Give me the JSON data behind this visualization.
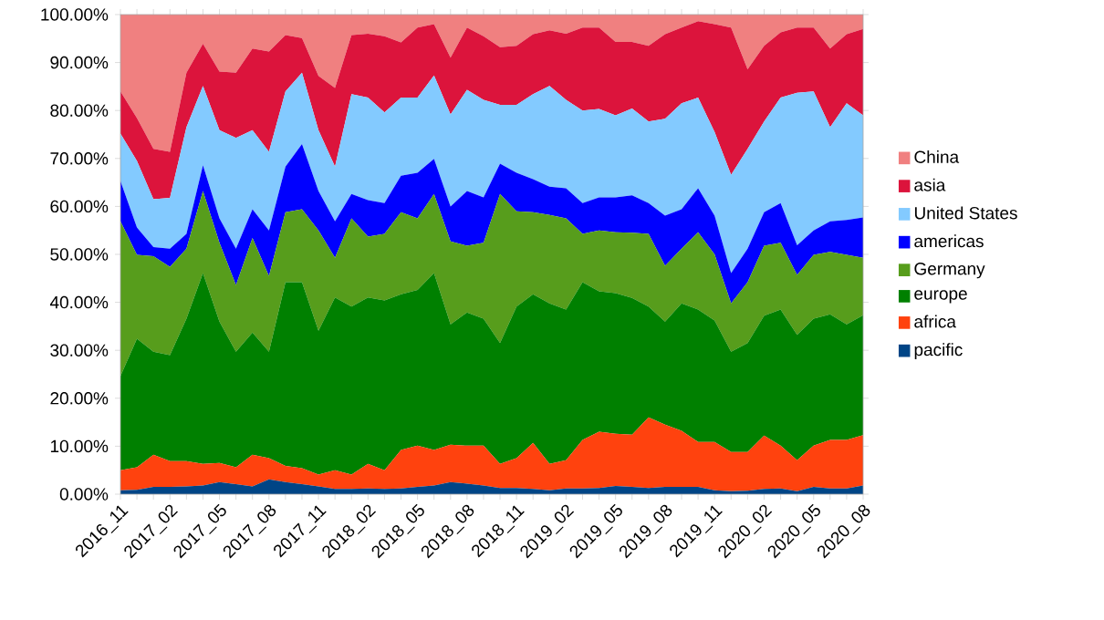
{
  "chart_data": {
    "type": "area",
    "stacked": true,
    "legend": "right",
    "categories": [
      "2016_11",
      null,
      null,
      "2017_02",
      null,
      null,
      "2017_05",
      null,
      null,
      "2017_08",
      null,
      null,
      "2017_11",
      null,
      null,
      "2018_02",
      null,
      null,
      "2018_05",
      null,
      null,
      "2018_08",
      null,
      null,
      "2018_11",
      null,
      null,
      "2019_02",
      null,
      null,
      "2019_05",
      null,
      null,
      "2019_08",
      null,
      null,
      "2019_11",
      null,
      null,
      "2020_02",
      null,
      null,
      "2020_05",
      null,
      null,
      "2020_08"
    ],
    "ylim": [
      0,
      100
    ],
    "yticks": [
      {
        "value": 0,
        "label": "0.00%"
      },
      {
        "value": 10,
        "label": "10.00%"
      },
      {
        "value": 20,
        "label": "20.00%"
      },
      {
        "value": 30,
        "label": "30.00%"
      },
      {
        "value": 40,
        "label": "40.00%"
      },
      {
        "value": 50,
        "label": "50.00%"
      },
      {
        "value": 60,
        "label": "60.00%"
      },
      {
        "value": 70,
        "label": "70.00%"
      },
      {
        "value": 80,
        "label": "80.00%"
      },
      {
        "value": 90,
        "label": "90.00%"
      },
      {
        "value": 100,
        "label": "100.00%"
      }
    ],
    "series": [
      {
        "name": "pacific",
        "color": "#004586",
        "values": [
          0.8,
          0.9,
          1.5,
          1.5,
          1.6,
          1.8,
          2.5,
          2.1,
          1.6,
          3.1,
          2.5,
          2.1,
          1.6,
          1.1,
          1.1,
          1.2,
          1.1,
          1.2,
          1.5,
          1.8,
          2.5,
          2.2,
          1.8,
          1.3,
          1.3,
          1.1,
          0.8,
          1.2,
          1.2,
          1.3,
          1.7,
          1.5,
          1.3,
          1.5,
          1.5,
          1.5,
          0.8,
          0.6,
          0.7,
          1.1,
          1.2,
          0.6,
          1.5,
          1.2,
          1.2,
          1.8
        ]
      },
      {
        "name": "africa",
        "color": "#ff420e",
        "values": [
          4.2,
          4.7,
          6.7,
          5.4,
          5.3,
          4.5,
          4.0,
          3.5,
          6.6,
          4.4,
          3.4,
          3.3,
          2.5,
          3.9,
          3.0,
          5.1,
          3.9,
          8.0,
          8.6,
          7.4,
          7.8,
          7.9,
          8.3,
          5.0,
          6.2,
          9.6,
          5.5,
          5.9,
          10.1,
          11.7,
          10.9,
          10.9,
          14.7,
          13.0,
          11.7,
          9.4,
          10.1,
          8.2,
          8.1,
          11.1,
          8.9,
          6.5,
          8.6,
          10.1,
          10.1,
          10.5
        ]
      },
      {
        "name": "europe",
        "color": "#008000",
        "values": [
          19.6,
          26.8,
          21.5,
          22.1,
          29.7,
          39.8,
          29.5,
          24.1,
          25.5,
          22.2,
          38.3,
          38.8,
          30.0,
          36.0,
          35.0,
          34.7,
          35.4,
          32.5,
          32.5,
          36.9,
          25.1,
          27.8,
          26.5,
          25.2,
          31.6,
          31.0,
          33.5,
          31.4,
          32.9,
          29.3,
          29.3,
          28.5,
          23.1,
          21.5,
          26.6,
          27.6,
          25.3,
          20.9,
          22.7,
          25.0,
          28.4,
          26.1,
          26.5,
          26.2,
          24.1,
          25.0
        ]
      },
      {
        "name": "Germany",
        "color": "#579d1c",
        "values": [
          32.3,
          17.5,
          19.9,
          18.4,
          14.6,
          17.1,
          16.4,
          13.9,
          19.7,
          15.8,
          14.6,
          15.2,
          20.9,
          8.3,
          18.4,
          12.7,
          13.9,
          17.1,
          14.9,
          16.5,
          17.3,
          13.9,
          15.8,
          31.1,
          19.9,
          17.1,
          18.4,
          19.0,
          10.1,
          12.7,
          12.7,
          13.6,
          15.2,
          11.6,
          11.4,
          16.1,
          13.8,
          10.1,
          12.7,
          14.6,
          13.9,
          12.5,
          13.3,
          13.0,
          14.5,
          12.0
        ]
      },
      {
        "name": "americas",
        "color": "#0000ff",
        "values": [
          8.4,
          5.7,
          1.9,
          3.8,
          3.1,
          5.4,
          5.1,
          7.6,
          6.0,
          9.5,
          9.5,
          13.6,
          8.2,
          7.6,
          5.1,
          7.6,
          6.4,
          7.6,
          9.5,
          7.3,
          7.3,
          11.4,
          9.5,
          6.3,
          8.0,
          6.9,
          5.9,
          6.3,
          6.4,
          6.9,
          7.3,
          7.8,
          6.4,
          10.5,
          8.2,
          9.2,
          8.1,
          6.3,
          7.0,
          7.0,
          8.3,
          6.2,
          5.1,
          6.4,
          7.3,
          8.4
        ]
      },
      {
        "name": "United States",
        "color": "#83caff",
        "values": [
          9.9,
          13.9,
          10.0,
          10.6,
          22.2,
          16.5,
          18.4,
          23.1,
          16.5,
          16.4,
          15.7,
          14.9,
          12.7,
          11.4,
          20.8,
          21.4,
          18.9,
          16.3,
          15.7,
          17.4,
          19.2,
          21.1,
          20.3,
          12.3,
          14.2,
          17.7,
          21.0,
          18.4,
          19.3,
          18.4,
          17.1,
          18.1,
          17.0,
          20.2,
          22.1,
          18.9,
          17.4,
          20.5,
          20.8,
          18.9,
          22.0,
          31.8,
          29.0,
          19.6,
          24.3,
          21.3
        ]
      },
      {
        "name": "asia",
        "color": "#dc143c",
        "values": [
          8.8,
          8.9,
          10.5,
          9.6,
          11.4,
          8.8,
          12.2,
          13.6,
          17.0,
          20.9,
          11.7,
          7.2,
          11.3,
          16.4,
          12.3,
          13.3,
          15.9,
          11.5,
          14.6,
          10.7,
          11.8,
          13.0,
          13.3,
          12.0,
          12.3,
          12.5,
          11.6,
          13.8,
          17.3,
          17.0,
          15.3,
          13.9,
          15.8,
          17.6,
          15.8,
          15.9,
          22.5,
          30.7,
          16.6,
          15.8,
          13.6,
          13.6,
          13.3,
          16.4,
          14.4,
          18.0
        ]
      },
      {
        "name": "China",
        "color": "#f08080",
        "values": [
          16.0,
          21.6,
          28.0,
          28.6,
          12.1,
          6.1,
          11.9,
          12.1,
          7.1,
          7.7,
          4.3,
          4.9,
          12.8,
          15.3,
          4.3,
          4.0,
          4.5,
          5.8,
          2.7,
          2.0,
          9.0,
          2.7,
          4.5,
          6.8,
          6.5,
          4.1,
          3.3,
          4.0,
          2.7,
          2.7,
          5.7,
          5.7,
          6.5,
          4.1,
          2.7,
          1.4,
          2.0,
          2.7,
          11.4,
          6.5,
          3.7,
          2.7,
          2.7,
          7.1,
          4.1,
          3.0
        ]
      }
    ]
  }
}
